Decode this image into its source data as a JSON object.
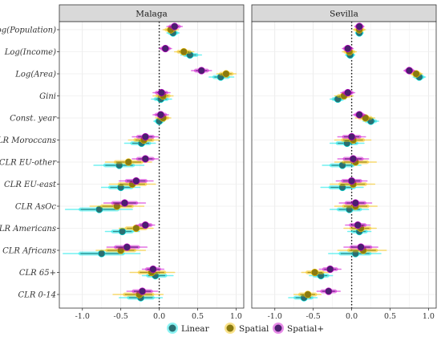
{
  "chart_data": {
    "type": "forest-plot",
    "xlim": [
      -1.3,
      1.1
    ],
    "x_ticks": [
      "-1.0",
      "-0.5",
      "0.0",
      "0.5",
      "1.0"
    ],
    "x_tick_values": [
      -1.0,
      -0.5,
      0.0,
      0.5,
      1.0
    ],
    "reference_line": 0,
    "grid": true,
    "legend_position": "bottom",
    "panels": [
      {
        "name": "Malaga"
      },
      {
        "name": "Sevilla"
      }
    ],
    "variables": [
      "Log(Population)",
      "Log(Income)",
      "Log(Area)",
      "Gini",
      "Const. year",
      "CLR Moroccans",
      "CLR EU-other",
      "CLR EU-east",
      "CLR AsOc",
      "CLR Americans",
      "CLR Africans",
      "CLR 65+",
      "CLR 0-14"
    ],
    "series": [
      {
        "name": "Linear",
        "color": "#2a6f72",
        "halo": "#00e5e5",
        "panels": [
          {
            "estimates": [
              0.18,
              0.4,
              0.8,
              0.02,
              0.0,
              -0.23,
              -0.52,
              -0.5,
              -0.78,
              -0.48,
              -0.75,
              -0.05,
              -0.24
            ],
            "lower": [
              0.1,
              0.28,
              0.65,
              -0.1,
              -0.07,
              -0.45,
              -0.85,
              -0.75,
              -1.22,
              -0.7,
              -1.25,
              -0.22,
              -0.52
            ],
            "upper": [
              0.26,
              0.55,
              0.97,
              0.16,
              0.07,
              -0.05,
              -0.2,
              -0.25,
              -0.35,
              -0.26,
              -0.25,
              0.18,
              0.04
            ]
          },
          {
            "estimates": [
              0.1,
              -0.02,
              0.88,
              -0.18,
              0.25,
              -0.06,
              -0.12,
              -0.12,
              -0.03,
              0.1,
              0.05,
              -0.4,
              -0.62
            ],
            "lower": [
              0.05,
              -0.08,
              0.8,
              -0.28,
              0.15,
              -0.28,
              -0.38,
              -0.4,
              -0.28,
              -0.05,
              -0.3,
              -0.55,
              -0.82
            ],
            "upper": [
              0.15,
              0.04,
              0.96,
              -0.08,
              0.35,
              0.16,
              0.12,
              0.15,
              0.22,
              0.25,
              0.38,
              -0.25,
              -0.45
            ]
          }
        ]
      },
      {
        "name": "Spatial",
        "color": "#8a7a10",
        "halo": "#f5c000",
        "panels": [
          {
            "estimates": [
              0.15,
              0.32,
              0.87,
              0.05,
              0.05,
              -0.2,
              -0.4,
              -0.35,
              -0.55,
              -0.3,
              -0.5,
              -0.1,
              -0.26
            ],
            "lower": [
              0.05,
              0.2,
              0.75,
              -0.08,
              -0.05,
              -0.4,
              -0.7,
              -0.65,
              -0.9,
              -0.52,
              -0.82,
              -0.38,
              -0.6
            ],
            "upper": [
              0.25,
              0.45,
              1.0,
              0.18,
              0.15,
              0.0,
              -0.1,
              -0.05,
              -0.2,
              -0.08,
              -0.18,
              0.2,
              0.05
            ]
          },
          {
            "estimates": [
              0.1,
              -0.03,
              0.84,
              -0.1,
              0.18,
              0.02,
              0.05,
              0.02,
              0.05,
              0.12,
              0.15,
              -0.48,
              -0.57
            ],
            "lower": [
              0.02,
              -0.12,
              0.76,
              -0.22,
              0.05,
              -0.22,
              -0.22,
              -0.28,
              -0.22,
              -0.1,
              -0.18,
              -0.65,
              -0.75
            ],
            "upper": [
              0.18,
              0.06,
              0.92,
              0.02,
              0.3,
              0.25,
              0.32,
              0.3,
              0.33,
              0.32,
              0.45,
              -0.3,
              -0.4
            ]
          }
        ]
      },
      {
        "name": "Spatial+",
        "color": "#4b1f6f",
        "halo": "#cc00cc",
        "panels": [
          {
            "estimates": [
              0.2,
              0.08,
              0.55,
              0.03,
              0.02,
              -0.18,
              -0.18,
              -0.3,
              -0.45,
              -0.18,
              -0.42,
              -0.08,
              -0.22
            ],
            "lower": [
              0.1,
              0.0,
              0.42,
              -0.08,
              -0.08,
              -0.35,
              -0.35,
              -0.52,
              -0.72,
              -0.3,
              -0.68,
              -0.22,
              -0.42
            ],
            "upper": [
              0.3,
              0.16,
              0.68,
              0.14,
              0.12,
              -0.01,
              -0.01,
              -0.08,
              -0.18,
              -0.06,
              -0.16,
              0.06,
              -0.02
            ]
          },
          {
            "estimates": [
              0.1,
              -0.05,
              0.75,
              -0.05,
              0.1,
              0.0,
              0.02,
              0.0,
              0.05,
              0.08,
              0.12,
              -0.28,
              -0.3
            ],
            "lower": [
              0.04,
              -0.12,
              0.68,
              -0.14,
              0.02,
              -0.18,
              -0.18,
              -0.2,
              -0.16,
              -0.08,
              -0.1,
              -0.42,
              -0.45
            ],
            "upper": [
              0.16,
              0.02,
              0.82,
              0.04,
              0.18,
              0.18,
              0.22,
              0.2,
              0.26,
              0.24,
              0.34,
              -0.14,
              -0.15
            ]
          }
        ]
      }
    ]
  }
}
